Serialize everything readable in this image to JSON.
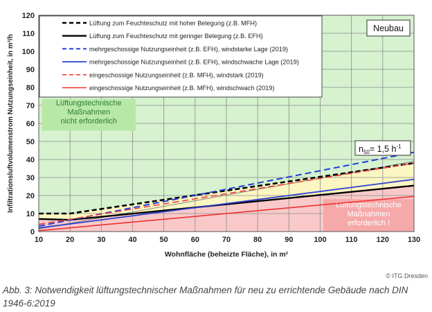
{
  "chart_data": {
    "type": "line",
    "xlabel": "Wohnfläche (beheizte Fläche), in m²",
    "ylabel": "Infiltrationsluftvolumenstrom Nutzungseinheit, in m³/h",
    "xlim": [
      10,
      130
    ],
    "ylim": [
      0,
      120
    ],
    "x_ticks": [
      "10",
      "20",
      "30",
      "40",
      "50",
      "60",
      "70",
      "80",
      "90",
      "100",
      "110",
      "120",
      "130"
    ],
    "y_ticks": [
      "0",
      "10",
      "20",
      "30",
      "40",
      "50",
      "60",
      "70",
      "80",
      "90",
      "100",
      "110",
      "120"
    ],
    "grid": true,
    "legend_position": "top-left",
    "corner_label": "Neubau",
    "n50_label": "n50= 1,5 h-1",
    "n50_parts": {
      "base": "n",
      "sub": "50",
      "mid": "= 1,5 h",
      "sup": "-1"
    },
    "zone_top_label": [
      "Lüftungstechnische",
      "Maßnahmen",
      "nicht erforderlich"
    ],
    "zone_bottom_label": [
      "Lüftungstechnische",
      "Maßnahmen",
      "erforderlich !"
    ],
    "n50_line": {
      "x": [
        10,
        130
      ],
      "y": [
        1.5,
        39
      ]
    },
    "series": [
      {
        "name": "Lüftung zum Feuchteschutz mit hoher Belegung (z.B. MFH)",
        "color": "#000000",
        "dash": "dashed",
        "width": 2.6,
        "x": [
          10,
          20,
          130
        ],
        "y": [
          10,
          10,
          38
        ]
      },
      {
        "name": "Lüftung zum Feuchteschutz mit geringer Belegung (z.B. EFH)",
        "color": "#000000",
        "dash": "solid",
        "width": 2.4,
        "x": [
          10,
          20,
          130
        ],
        "y": [
          7,
          6.5,
          25.5
        ]
      },
      {
        "name": "mehrgeschossige Nutzungseinheit (z.B. EFH), windstarke Lage (2019)",
        "color": "#1f3fd9",
        "dash": "dashed",
        "width": 2,
        "x": [
          10,
          130
        ],
        "y": [
          3,
          44
        ]
      },
      {
        "name": "mehrgeschossige Nutzungseinheit (z.B. EFH), windschwache Lage (2019)",
        "color": "#2b3fd0",
        "dash": "solid",
        "width": 1.8,
        "x": [
          10,
          130
        ],
        "y": [
          2,
          29
        ]
      },
      {
        "name": "eingeschossige Nutzungseinheit (z.B. MFH), windstark (2019)",
        "color": "#ee4040",
        "dash": "dashed",
        "width": 1.6,
        "x": [
          10,
          130
        ],
        "y": [
          4,
          38
        ]
      },
      {
        "name": "eingeschossige Nutzungseinheit (z.B. MFH), windschwach (2019)",
        "color": "#ee3030",
        "dash": "solid",
        "width": 1.6,
        "x": [
          10,
          130
        ],
        "y": [
          0.5,
          19.5
        ]
      }
    ]
  },
  "footer": {
    "credit": "© ITG Dresden",
    "caption": "Abb. 3: Notwendigkeit lüftungstechnischer Maßnahmen für neu zu errichtende Gebäude nach DIN 1946-6:2019"
  },
  "colors": {
    "zone_green": "#d6f2cf",
    "zone_yellow": "#fbf6c2",
    "zone_red": "#f9c9c9",
    "zone_red_box": "#f6a9a9",
    "zone_green_box": "#b8e8a8",
    "grid": "#8a8a8a"
  }
}
